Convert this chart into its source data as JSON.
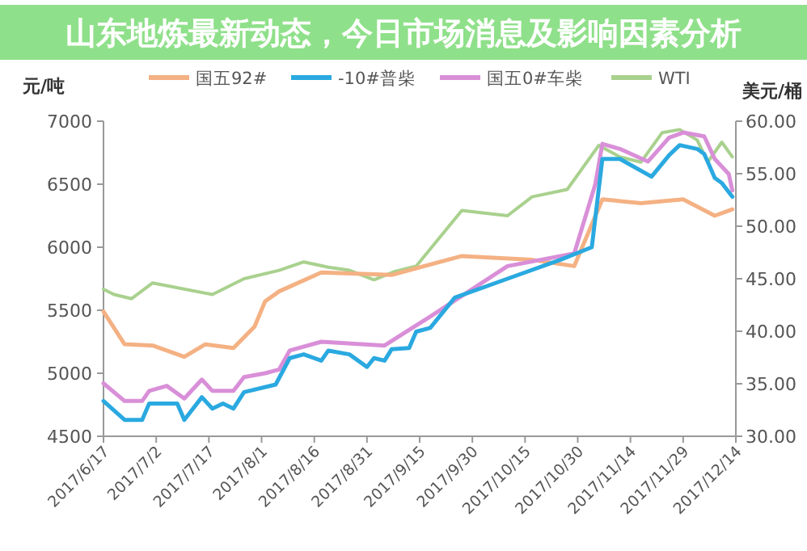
{
  "chart_data": {
    "type": "line",
    "title": "山东地炼最新动态，今日市场消息及影响因素分析",
    "ylabel": "元/吨",
    "y2label": "美元/桶",
    "legend": "top",
    "xlim": [
      "2017-06-17",
      "2017-12-14"
    ],
    "xticks": [
      {
        "value": "2017-06-17",
        "label": "2017/6/17"
      },
      {
        "value": "2017-07-02",
        "label": "2017/7/2"
      },
      {
        "value": "2017-07-17",
        "label": "2017/7/17"
      },
      {
        "value": "2017-08-01",
        "label": "2017/8/1"
      },
      {
        "value": "2017-08-16",
        "label": "2017/8/16"
      },
      {
        "value": "2017-08-31",
        "label": "2017/8/31"
      },
      {
        "value": "2017-09-15",
        "label": "2017/9/15"
      },
      {
        "value": "2017-09-30",
        "label": "2017/9/30"
      },
      {
        "value": "2017-10-15",
        "label": "2017/10/15"
      },
      {
        "value": "2017-10-30",
        "label": "2017/10/30"
      },
      {
        "value": "2017-11-14",
        "label": "2017/11/14"
      },
      {
        "value": "2017-11-29",
        "label": "2017/11/29"
      },
      {
        "value": "2017-12-14",
        "label": "2017/12/14"
      }
    ],
    "ylim": [
      4500,
      7000
    ],
    "yticks": [
      4500,
      5000,
      5500,
      6000,
      6500,
      7000
    ],
    "y2lim": [
      30,
      60
    ],
    "y2ticks": [
      {
        "value": 30,
        "label": "30.00"
      },
      {
        "value": 35,
        "label": "35.00"
      },
      {
        "value": 40,
        "label": "40.00"
      },
      {
        "value": 45,
        "label": "45.00"
      },
      {
        "value": 50,
        "label": "50.00"
      },
      {
        "value": 55,
        "label": "55.00"
      },
      {
        "value": 60,
        "label": "60.00"
      }
    ],
    "series": [
      {
        "name": "国五92#",
        "color": "#f4b183",
        "x": [
          "2017-06-17",
          "2017-06-23",
          "2017-07-01",
          "2017-07-10",
          "2017-07-16",
          "2017-07-24",
          "2017-07-30",
          "2017-08-02",
          "2017-08-06",
          "2017-08-18",
          "2017-09-07",
          "2017-09-27",
          "2017-10-17",
          "2017-10-29",
          "2017-11-06",
          "2017-11-17",
          "2017-11-29",
          "2017-12-08",
          "2017-12-13"
        ],
        "values": [
          5490,
          5230,
          5220,
          5130,
          5230,
          5200,
          5370,
          5570,
          5650,
          5800,
          5780,
          5930,
          5900,
          5850,
          6380,
          6350,
          6380,
          6250,
          6300
        ]
      },
      {
        "name": "-10#普柴",
        "color": "#2aa9e0",
        "x": [
          "2017-06-17",
          "2017-06-23",
          "2017-06-28",
          "2017-06-30",
          "2017-07-08",
          "2017-07-10",
          "2017-07-15",
          "2017-07-18",
          "2017-07-21",
          "2017-07-24",
          "2017-07-27",
          "2017-08-05",
          "2017-08-09",
          "2017-08-13",
          "2017-08-18",
          "2017-08-20",
          "2017-08-26",
          "2017-08-31",
          "2017-09-02",
          "2017-09-05",
          "2017-09-07",
          "2017-09-12",
          "2017-09-14",
          "2017-09-18",
          "2017-09-25",
          "2017-10-10",
          "2017-10-25",
          "2017-11-03",
          "2017-11-06",
          "2017-11-11",
          "2017-11-20",
          "2017-11-25",
          "2017-11-28",
          "2017-12-03",
          "2017-12-05",
          "2017-12-08",
          "2017-12-10",
          "2017-12-13"
        ],
        "values": [
          4780,
          4630,
          4630,
          4760,
          4760,
          4630,
          4810,
          4720,
          4760,
          4720,
          4850,
          4910,
          5120,
          5150,
          5100,
          5180,
          5150,
          5050,
          5120,
          5100,
          5190,
          5200,
          5330,
          5360,
          5600,
          5750,
          5900,
          6000,
          6700,
          6700,
          6560,
          6730,
          6810,
          6780,
          6740,
          6550,
          6510,
          6400
        ]
      },
      {
        "name": "国五0#车柴",
        "color": "#d98fd8",
        "x": [
          "2017-06-17",
          "2017-06-23",
          "2017-06-28",
          "2017-06-30",
          "2017-07-05",
          "2017-07-10",
          "2017-07-15",
          "2017-07-18",
          "2017-07-24",
          "2017-07-27",
          "2017-08-02",
          "2017-08-06",
          "2017-08-09",
          "2017-08-18",
          "2017-09-05",
          "2017-09-18",
          "2017-10-10",
          "2017-10-29",
          "2017-11-04",
          "2017-11-06",
          "2017-11-11",
          "2017-11-19",
          "2017-11-25",
          "2017-11-29",
          "2017-12-05",
          "2017-12-08",
          "2017-12-12",
          "2017-12-13"
        ],
        "values": [
          4920,
          4780,
          4780,
          4860,
          4900,
          4800,
          4950,
          4860,
          4860,
          4970,
          5000,
          5030,
          5180,
          5250,
          5220,
          5450,
          5850,
          5950,
          6500,
          6820,
          6780,
          6680,
          6870,
          6910,
          6880,
          6700,
          6580,
          6450
        ]
      },
      {
        "name": "WTI",
        "color": "#a9d18e",
        "axis": "y2",
        "x": [
          "2017-06-17",
          "2017-06-20",
          "2017-06-25",
          "2017-07-01",
          "2017-07-18",
          "2017-07-27",
          "2017-08-06",
          "2017-08-13",
          "2017-08-20",
          "2017-08-26",
          "2017-09-02",
          "2017-09-08",
          "2017-09-14",
          "2017-09-27",
          "2017-10-10",
          "2017-10-17",
          "2017-10-27",
          "2017-11-05",
          "2017-11-11",
          "2017-11-17",
          "2017-11-23",
          "2017-11-28",
          "2017-12-03",
          "2017-12-06",
          "2017-12-10",
          "2017-12-13"
        ],
        "values": [
          44.0,
          43.5,
          43.1,
          44.6,
          43.5,
          45.0,
          45.8,
          46.6,
          46.1,
          45.8,
          44.9,
          45.7,
          46.2,
          51.5,
          51.0,
          52.8,
          53.5,
          57.7,
          56.6,
          56.1,
          58.9,
          59.2,
          58.2,
          56.1,
          58.0,
          56.6
        ]
      }
    ]
  }
}
